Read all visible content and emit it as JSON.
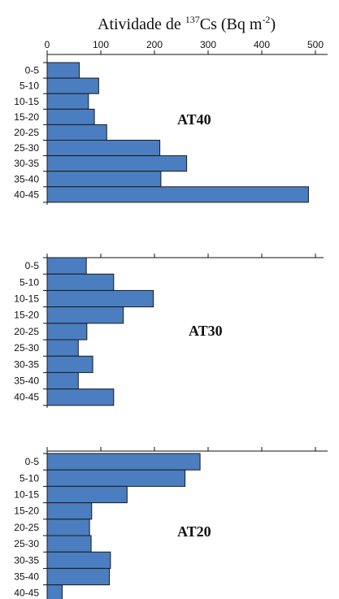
{
  "figure": {
    "title_prefix": "Atividade de ",
    "title_sup1": "137",
    "title_mid": "Cs (Bq m",
    "title_sup2": "-2",
    "title_suffix": ")"
  },
  "colors": {
    "bar_fill": "#4a7ec0",
    "bar_stroke": "#1b1b1b",
    "axis": "#111111"
  },
  "chart_data": [
    {
      "type": "bar",
      "orientation": "horizontal",
      "label": "AT40",
      "categories": [
        "0-5",
        "5-10",
        "10-15",
        "15-20",
        "20-25",
        "25-30",
        "30-35",
        "35-40",
        "40-45"
      ],
      "values": [
        60,
        96,
        77,
        88,
        111,
        210,
        260,
        212,
        487
      ],
      "xlim": [
        0,
        520
      ],
      "xticks": [
        0,
        100,
        200,
        300,
        400,
        500
      ],
      "tick_labels_shown": true
    },
    {
      "type": "bar",
      "orientation": "horizontal",
      "label": "AT30",
      "categories": [
        "0-5",
        "5-10",
        "10-15",
        "15-20",
        "20-25",
        "25-30",
        "30-35",
        "35-40",
        "40-45"
      ],
      "values": [
        73,
        124,
        198,
        142,
        74,
        58,
        85,
        58,
        124
      ],
      "xlim": [
        0,
        520
      ],
      "xticks": [
        0,
        100,
        200,
        300,
        400,
        500
      ],
      "tick_labels_shown": false
    },
    {
      "type": "bar",
      "orientation": "horizontal",
      "label": "AT20",
      "categories": [
        "0-5",
        "5-10",
        "10-15",
        "15-20",
        "20-25",
        "25-30",
        "30-35",
        "35-40",
        "40-45"
      ],
      "values": [
        285,
        257,
        149,
        83,
        79,
        82,
        118,
        116,
        28
      ],
      "xlim": [
        0,
        520
      ],
      "xticks": [
        0,
        100,
        200,
        300,
        400,
        500
      ],
      "tick_labels_shown": false
    }
  ]
}
